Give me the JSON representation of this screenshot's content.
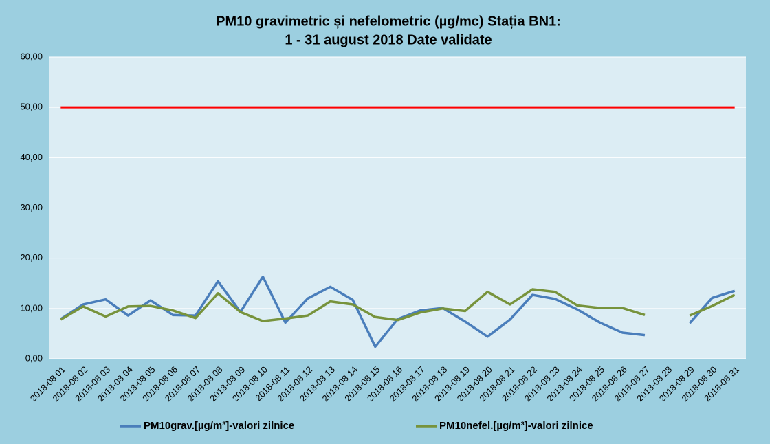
{
  "chart_data": {
    "type": "line",
    "title": [
      "PM10 gravimetric și nefelometric (µg/mc) Stația BN1:",
      "1 - 31 august 2018 Date validate"
    ],
    "categories": [
      "2018-08 01",
      "2018-08 02",
      "2018-08 03",
      "2018-08 04",
      "2018-08 05",
      "2018-08 06",
      "2018-08 07",
      "2018-08 08",
      "2018-08 09",
      "2018-08 10",
      "2018-08 11",
      "2018-08 12",
      "2018-08 13",
      "2018-08 14",
      "2018-08 15",
      "2018-08 16",
      "2018-08 17",
      "2018-08 18",
      "2018-08 19",
      "2018-08 20",
      "2018-08 21",
      "2018-08 22",
      "2018-08 23",
      "2018-08 24",
      "2018-08 25",
      "2018-08 26",
      "2018-08 27",
      "2018-08 28",
      "2018-08 29",
      "2018-08 30",
      "2018-08 31"
    ],
    "series": [
      {
        "name": "PM10grav.[µg/m³]-valori zilnice",
        "color": "#4a7ebb",
        "values": [
          7.9,
          10.8,
          11.8,
          8.6,
          11.6,
          8.7,
          8.6,
          15.4,
          9.3,
          16.3,
          7.2,
          12.0,
          14.3,
          11.7,
          2.4,
          7.9,
          9.6,
          10.1,
          7.4,
          4.4,
          7.8,
          12.7,
          11.9,
          9.8,
          7.2,
          5.2,
          4.7,
          null,
          7.1,
          12.1,
          13.5
        ]
      },
      {
        "name": "PM10nefel.[µg/m³]-valori zilnice",
        "color": "#77933c",
        "values": [
          7.8,
          10.4,
          8.4,
          10.4,
          10.5,
          9.6,
          8.1,
          13.0,
          9.3,
          7.5,
          8.0,
          8.6,
          11.4,
          10.8,
          8.3,
          7.7,
          9.2,
          10.0,
          9.5,
          13.3,
          10.8,
          13.8,
          13.3,
          10.6,
          10.1,
          10.1,
          8.7,
          null,
          8.6,
          10.5,
          12.7
        ]
      }
    ],
    "hlines": [
      {
        "value": 50,
        "color": "#ff0000"
      }
    ],
    "ylim": [
      0,
      60
    ],
    "yticks": [
      {
        "value": 0,
        "label": "0,00"
      },
      {
        "value": 10,
        "label": "10,00"
      },
      {
        "value": 20,
        "label": "20,00"
      },
      {
        "value": 30,
        "label": "30,00"
      },
      {
        "value": 40,
        "label": "40,00"
      },
      {
        "value": 50,
        "label": "50,00"
      },
      {
        "value": 60,
        "label": "60,00"
      }
    ],
    "grid": true,
    "legend": "bottom"
  }
}
